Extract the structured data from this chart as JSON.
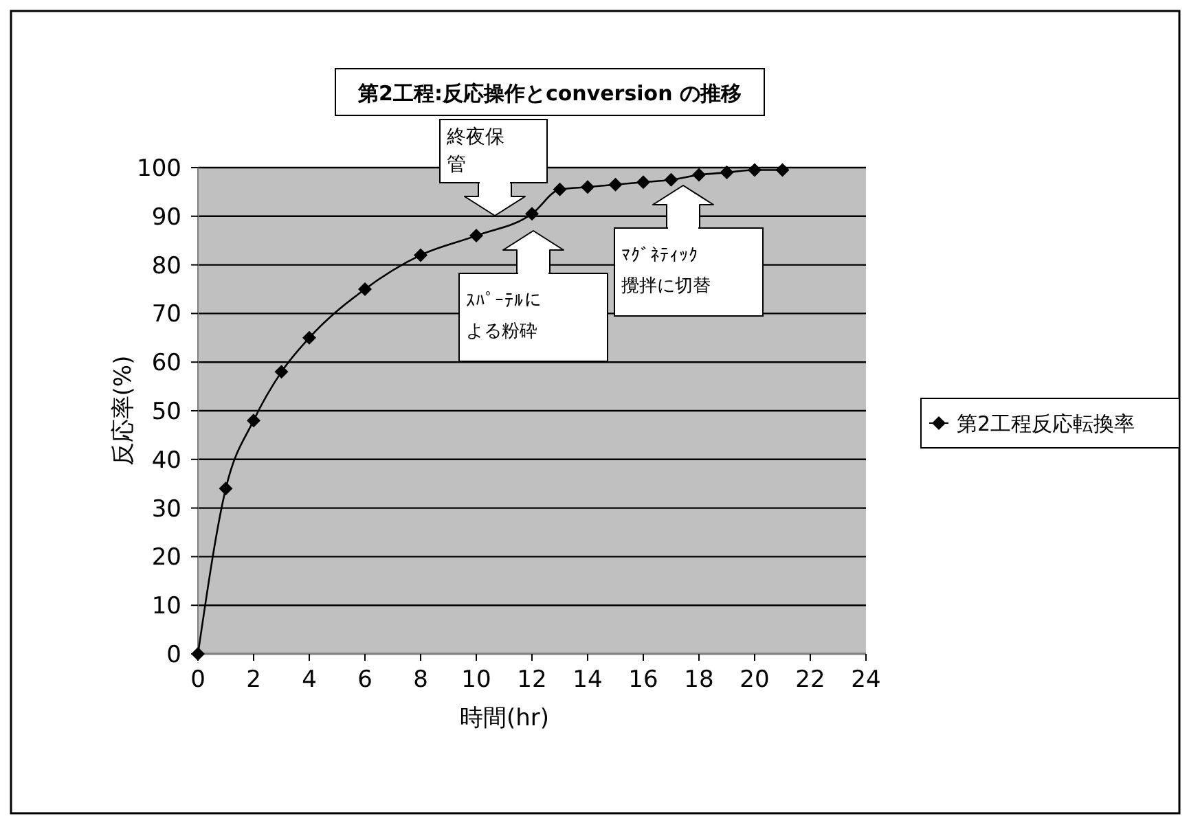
{
  "chart_data": {
    "type": "line",
    "title": "第2工程:反応操作とconversion の推移",
    "xlabel": "時間(hr)",
    "ylabel": "反応率(%)",
    "x": [
      0,
      1,
      2,
      3,
      4,
      6,
      8,
      10,
      12,
      13,
      14,
      15,
      16,
      17,
      18,
      19,
      20,
      21
    ],
    "series": [
      {
        "name": "第2工程反応転換率",
        "color": "#000000",
        "values": [
          0,
          34,
          48,
          58,
          65,
          75,
          82,
          86,
          90.5,
          95.5,
          96,
          96.5,
          97,
          97.5,
          98.5,
          99,
          99.5,
          99.5
        ]
      }
    ],
    "xlim": [
      0,
      24
    ],
    "xticks": [
      0,
      2,
      4,
      6,
      8,
      10,
      12,
      14,
      16,
      18,
      20,
      22,
      24
    ],
    "ylim": [
      0,
      100
    ],
    "yticks": [
      0,
      10,
      20,
      30,
      40,
      50,
      60,
      70,
      80,
      90,
      100
    ],
    "grid": "y",
    "legend": "right",
    "marker": "diamond",
    "line_style": "solid",
    "annotations": [
      "終夜保管",
      "ｽﾊﾟｰﾃﾙによる粉砕",
      "ﾏｸﾞﾈﾃｨｯｸ攪拌に切替"
    ]
  }
}
